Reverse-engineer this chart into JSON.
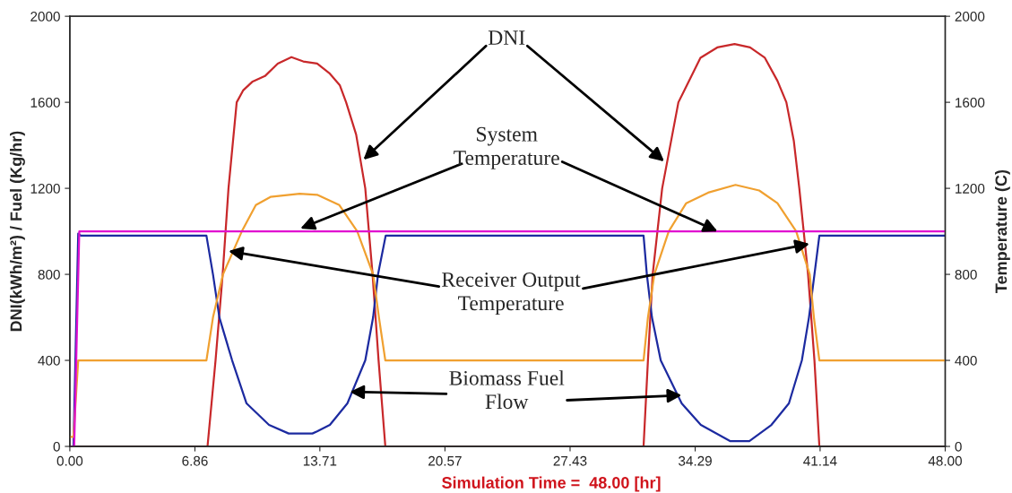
{
  "chart_data": {
    "type": "line",
    "xlabel": "Simulation Time =  48.00 [hr]",
    "ylabel": "DNI(kWh/m²) / Fuel (Kg/hr)",
    "y2label": "Temperature (C)",
    "xlim": [
      0,
      48
    ],
    "xticks": [
      {
        "value": 0,
        "label": "0.00"
      },
      6.86,
      13.71,
      20.57,
      27.43,
      34.29,
      41.14,
      {
        "value": 48,
        "label": "48.00"
      }
    ],
    "ylim": [
      0,
      2000
    ],
    "yticks": [
      0,
      400,
      800,
      1200,
      1600,
      2000
    ],
    "y2lim": [
      0,
      2000
    ],
    "y2ticks": [
      0,
      400,
      800,
      1200,
      1600,
      2000
    ],
    "grid": false,
    "legend": false,
    "series": [
      {
        "color": "#c8282a",
        "x": [
          0,
          7.55,
          7.99,
          8.38,
          8.7,
          9.15,
          9.5,
          10.0,
          10.7,
          11.4,
          12.15,
          12.8,
          13.56,
          14.26,
          14.8,
          15.15,
          15.7,
          16.2,
          16.6,
          16.93,
          17.3,
          31.46,
          31.7,
          31.96,
          32.48,
          33.37,
          34.58,
          35.5,
          36.45,
          37.3,
          38.11,
          38.8,
          39.29,
          39.7,
          40.0,
          40.48,
          40.83,
          41.1,
          48
        ],
        "values": [
          0,
          0,
          400,
          800,
          1200,
          1600,
          1655,
          1695,
          1722,
          1780,
          1810,
          1790,
          1780,
          1733,
          1680,
          1600,
          1450,
          1200,
          800,
          400,
          0,
          0,
          400,
          800,
          1200,
          1600,
          1807,
          1855,
          1871,
          1855,
          1807,
          1700,
          1600,
          1420,
          1200,
          800,
          400,
          0,
          0
        ]
      },
      {
        "color": "#1c2aa0",
        "x": [
          0,
          0.2,
          0.46,
          0.6,
          7.49,
          7.85,
          8.2,
          8.9,
          9.69,
          10.92,
          12.0,
          13.3,
          13.56,
          14.26,
          15.22,
          16.2,
          16.63,
          16.9,
          17.32,
          31.46,
          31.64,
          31.92,
          32.4,
          33.55,
          34.6,
          36.2,
          37.26,
          38.47,
          39.43,
          40.14,
          40.53,
          40.83,
          41.1,
          48
        ],
        "values": [
          0,
          0,
          990,
          980,
          980,
          800,
          600,
          400,
          200,
          100,
          60,
          60,
          70,
          100,
          200,
          400,
          600,
          800,
          980,
          980,
          800,
          600,
          400,
          200,
          100,
          25,
          25,
          100,
          200,
          400,
          600,
          800,
          980,
          980
        ]
      },
      {
        "color": "#f0a030",
        "axis": "y2",
        "x": [
          0,
          0.2,
          0.46,
          7.49,
          7.85,
          8.4,
          9.43,
          10.2,
          11.0,
          12.6,
          13.56,
          14.78,
          15.76,
          16.63,
          16.95,
          17.3,
          31.46,
          31.7,
          32.05,
          32.84,
          33.8,
          35.0,
          36.5,
          37.8,
          38.8,
          39.83,
          40.57,
          40.8,
          41.1,
          48
        ],
        "values": [
          44,
          44,
          400,
          400,
          600,
          800,
          1000,
          1122,
          1160,
          1175,
          1170,
          1122,
          1000,
          800,
          600,
          400,
          400,
          600,
          800,
          1000,
          1131,
          1180,
          1216,
          1190,
          1131,
          1000,
          800,
          600,
          400,
          400
        ]
      },
      {
        "color": "#e010d0",
        "axis": "y2",
        "x": [
          0,
          0.24,
          0.52,
          48
        ],
        "values": [
          0,
          0,
          1000,
          1000
        ]
      }
    ],
    "annotations": [
      {
        "text": "DNI",
        "x": 16.1,
        "y": 1333
      },
      {
        "text": "System\nTemperature",
        "x": 12.64,
        "y": 1013
      },
      {
        "text": "Receiver Output\nTemperature",
        "x": 8.7,
        "y": 908
      },
      {
        "text": "Biomass Fuel\nFlow",
        "x": 15.35,
        "y": 254
      }
    ]
  }
}
